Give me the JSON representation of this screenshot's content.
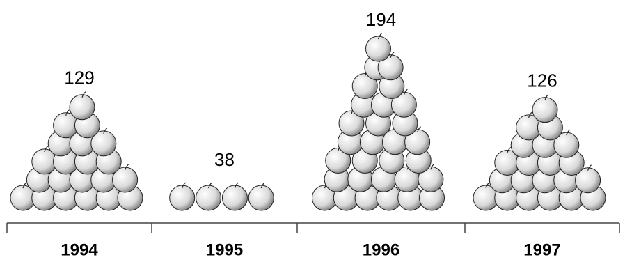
{
  "chart_data": {
    "type": "pictogram",
    "categories": [
      "1994",
      "1995",
      "1996",
      "1997"
    ],
    "values": [
      129,
      38,
      194,
      126
    ]
  }
}
